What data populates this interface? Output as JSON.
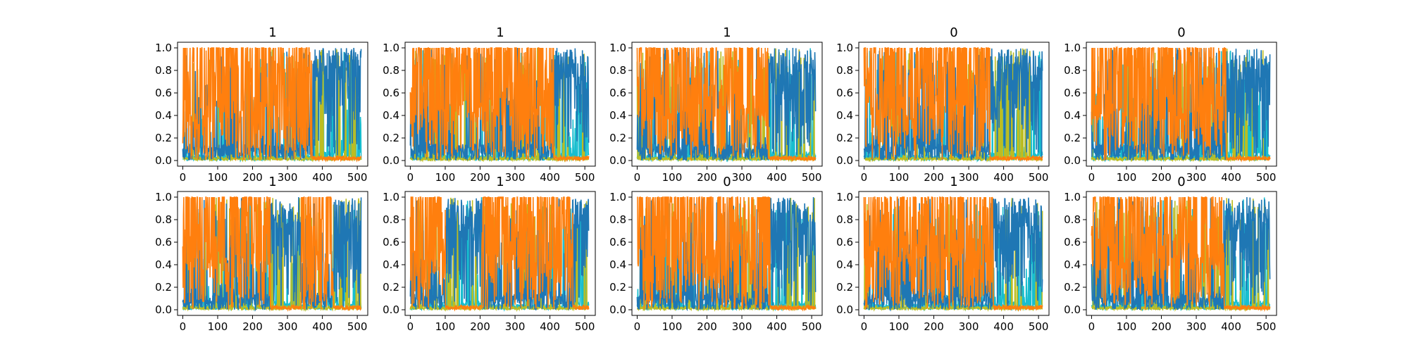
{
  "figure": {
    "colors": {
      "blue": "#1f77b4",
      "orange": "#ff7f0e",
      "cyan": "#17becf",
      "olive": "#bcbd22",
      "green": "#2ca02c",
      "red": "#d62728",
      "purple": "#9467bd",
      "brown": "#8c564b",
      "pink": "#e377c2",
      "gray": "#7f7f7f"
    }
  },
  "chart_data": [
    {
      "type": "line",
      "title": "1",
      "xlim": [
        -15,
        530
      ],
      "ylim": [
        -0.05,
        1.05
      ],
      "xticks": [
        "0",
        "100",
        "200",
        "300",
        "400",
        "500"
      ],
      "yticks": [
        "0.0",
        "0.2",
        "0.4",
        "0.6",
        "0.8",
        "1.0"
      ],
      "n_points": 512,
      "orange_regions": [
        [
          0,
          370
        ]
      ],
      "series": [
        {
          "color": "blue"
        },
        {
          "color": "orange"
        },
        {
          "color": "cyan"
        },
        {
          "color": "olive"
        }
      ]
    },
    {
      "type": "line",
      "title": "1",
      "xlim": [
        -15,
        530
      ],
      "ylim": [
        -0.05,
        1.05
      ],
      "xticks": [
        "0",
        "100",
        "200",
        "300",
        "400",
        "500"
      ],
      "yticks": [
        "0.0",
        "0.2",
        "0.4",
        "0.6",
        "0.8",
        "1.0"
      ],
      "n_points": 512,
      "orange_regions": [
        [
          0,
          410
        ]
      ],
      "series": [
        {
          "color": "blue"
        },
        {
          "color": "orange"
        },
        {
          "color": "cyan"
        },
        {
          "color": "olive"
        }
      ]
    },
    {
      "type": "line",
      "title": "1",
      "xlim": [
        -15,
        530
      ],
      "ylim": [
        -0.05,
        1.05
      ],
      "xticks": [
        "0",
        "100",
        "200",
        "300",
        "400",
        "500"
      ],
      "yticks": [
        "0.0",
        "0.2",
        "0.4",
        "0.6",
        "0.8",
        "1.0"
      ],
      "n_points": 512,
      "orange_regions": [
        [
          0,
          375
        ]
      ],
      "series": [
        {
          "color": "blue"
        },
        {
          "color": "orange"
        },
        {
          "color": "cyan"
        },
        {
          "color": "olive"
        }
      ]
    },
    {
      "type": "line",
      "title": "0",
      "xlim": [
        -15,
        530
      ],
      "ylim": [
        -0.05,
        1.05
      ],
      "xticks": [
        "0",
        "100",
        "200",
        "300",
        "400",
        "500"
      ],
      "yticks": [
        "0.0",
        "0.2",
        "0.4",
        "0.6",
        "0.8",
        "1.0"
      ],
      "n_points": 512,
      "orange_regions": [
        [
          0,
          360
        ]
      ],
      "series": [
        {
          "color": "blue"
        },
        {
          "color": "orange"
        },
        {
          "color": "cyan"
        },
        {
          "color": "olive"
        }
      ]
    },
    {
      "type": "line",
      "title": "0",
      "xlim": [
        -15,
        530
      ],
      "ylim": [
        -0.05,
        1.05
      ],
      "xticks": [
        "0",
        "100",
        "200",
        "300",
        "400",
        "500"
      ],
      "yticks": [
        "0.0",
        "0.2",
        "0.4",
        "0.6",
        "0.8",
        "1.0"
      ],
      "n_points": 512,
      "orange_regions": [
        [
          0,
          385
        ]
      ],
      "series": [
        {
          "color": "blue"
        },
        {
          "color": "orange"
        },
        {
          "color": "cyan"
        },
        {
          "color": "olive"
        }
      ]
    },
    {
      "type": "line",
      "title": "1",
      "xlim": [
        -15,
        530
      ],
      "ylim": [
        -0.05,
        1.05
      ],
      "xticks": [
        "0",
        "100",
        "200",
        "300",
        "400",
        "500"
      ],
      "yticks": [
        "0.0",
        "0.2",
        "0.4",
        "0.6",
        "0.8",
        "1.0"
      ],
      "n_points": 512,
      "orange_regions": [
        [
          0,
          250
        ],
        [
          340,
          430
        ]
      ],
      "series": [
        {
          "color": "blue"
        },
        {
          "color": "orange"
        },
        {
          "color": "cyan"
        },
        {
          "color": "olive"
        }
      ]
    },
    {
      "type": "line",
      "title": "1",
      "xlim": [
        -15,
        530
      ],
      "ylim": [
        -0.05,
        1.05
      ],
      "xticks": [
        "0",
        "100",
        "200",
        "300",
        "400",
        "500"
      ],
      "yticks": [
        "0.0",
        "0.2",
        "0.4",
        "0.6",
        "0.8",
        "1.0"
      ],
      "n_points": 512,
      "orange_regions": [
        [
          0,
          100
        ],
        [
          205,
          465
        ]
      ],
      "series": [
        {
          "color": "blue"
        },
        {
          "color": "orange"
        },
        {
          "color": "cyan"
        },
        {
          "color": "olive"
        }
      ]
    },
    {
      "type": "line",
      "title": "0",
      "xlim": [
        -15,
        530
      ],
      "ylim": [
        -0.05,
        1.05
      ],
      "xticks": [
        "0",
        "100",
        "200",
        "300",
        "400",
        "500"
      ],
      "yticks": [
        "0.0",
        "0.2",
        "0.4",
        "0.6",
        "0.8",
        "1.0"
      ],
      "n_points": 512,
      "orange_regions": [
        [
          0,
          380
        ]
      ],
      "series": [
        {
          "color": "blue"
        },
        {
          "color": "orange"
        },
        {
          "color": "cyan"
        },
        {
          "color": "olive"
        }
      ]
    },
    {
      "type": "line",
      "title": "1",
      "xlim": [
        -15,
        530
      ],
      "ylim": [
        -0.05,
        1.05
      ],
      "xticks": [
        "0",
        "100",
        "200",
        "300",
        "400",
        "500"
      ],
      "yticks": [
        "0.0",
        "0.2",
        "0.4",
        "0.6",
        "0.8",
        "1.0"
      ],
      "n_points": 512,
      "orange_regions": [
        [
          0,
          370
        ]
      ],
      "series": [
        {
          "color": "blue"
        },
        {
          "color": "orange"
        },
        {
          "color": "cyan"
        },
        {
          "color": "olive"
        }
      ]
    },
    {
      "type": "line",
      "title": "0",
      "xlim": [
        -15,
        530
      ],
      "ylim": [
        -0.05,
        1.05
      ],
      "xticks": [
        "0",
        "100",
        "200",
        "300",
        "400",
        "500"
      ],
      "yticks": [
        "0.0",
        "0.2",
        "0.4",
        "0.6",
        "0.8",
        "1.0"
      ],
      "n_points": 512,
      "orange_regions": [
        [
          0,
          380
        ]
      ],
      "series": [
        {
          "color": "blue"
        },
        {
          "color": "orange"
        },
        {
          "color": "cyan"
        },
        {
          "color": "olive"
        }
      ]
    }
  ]
}
